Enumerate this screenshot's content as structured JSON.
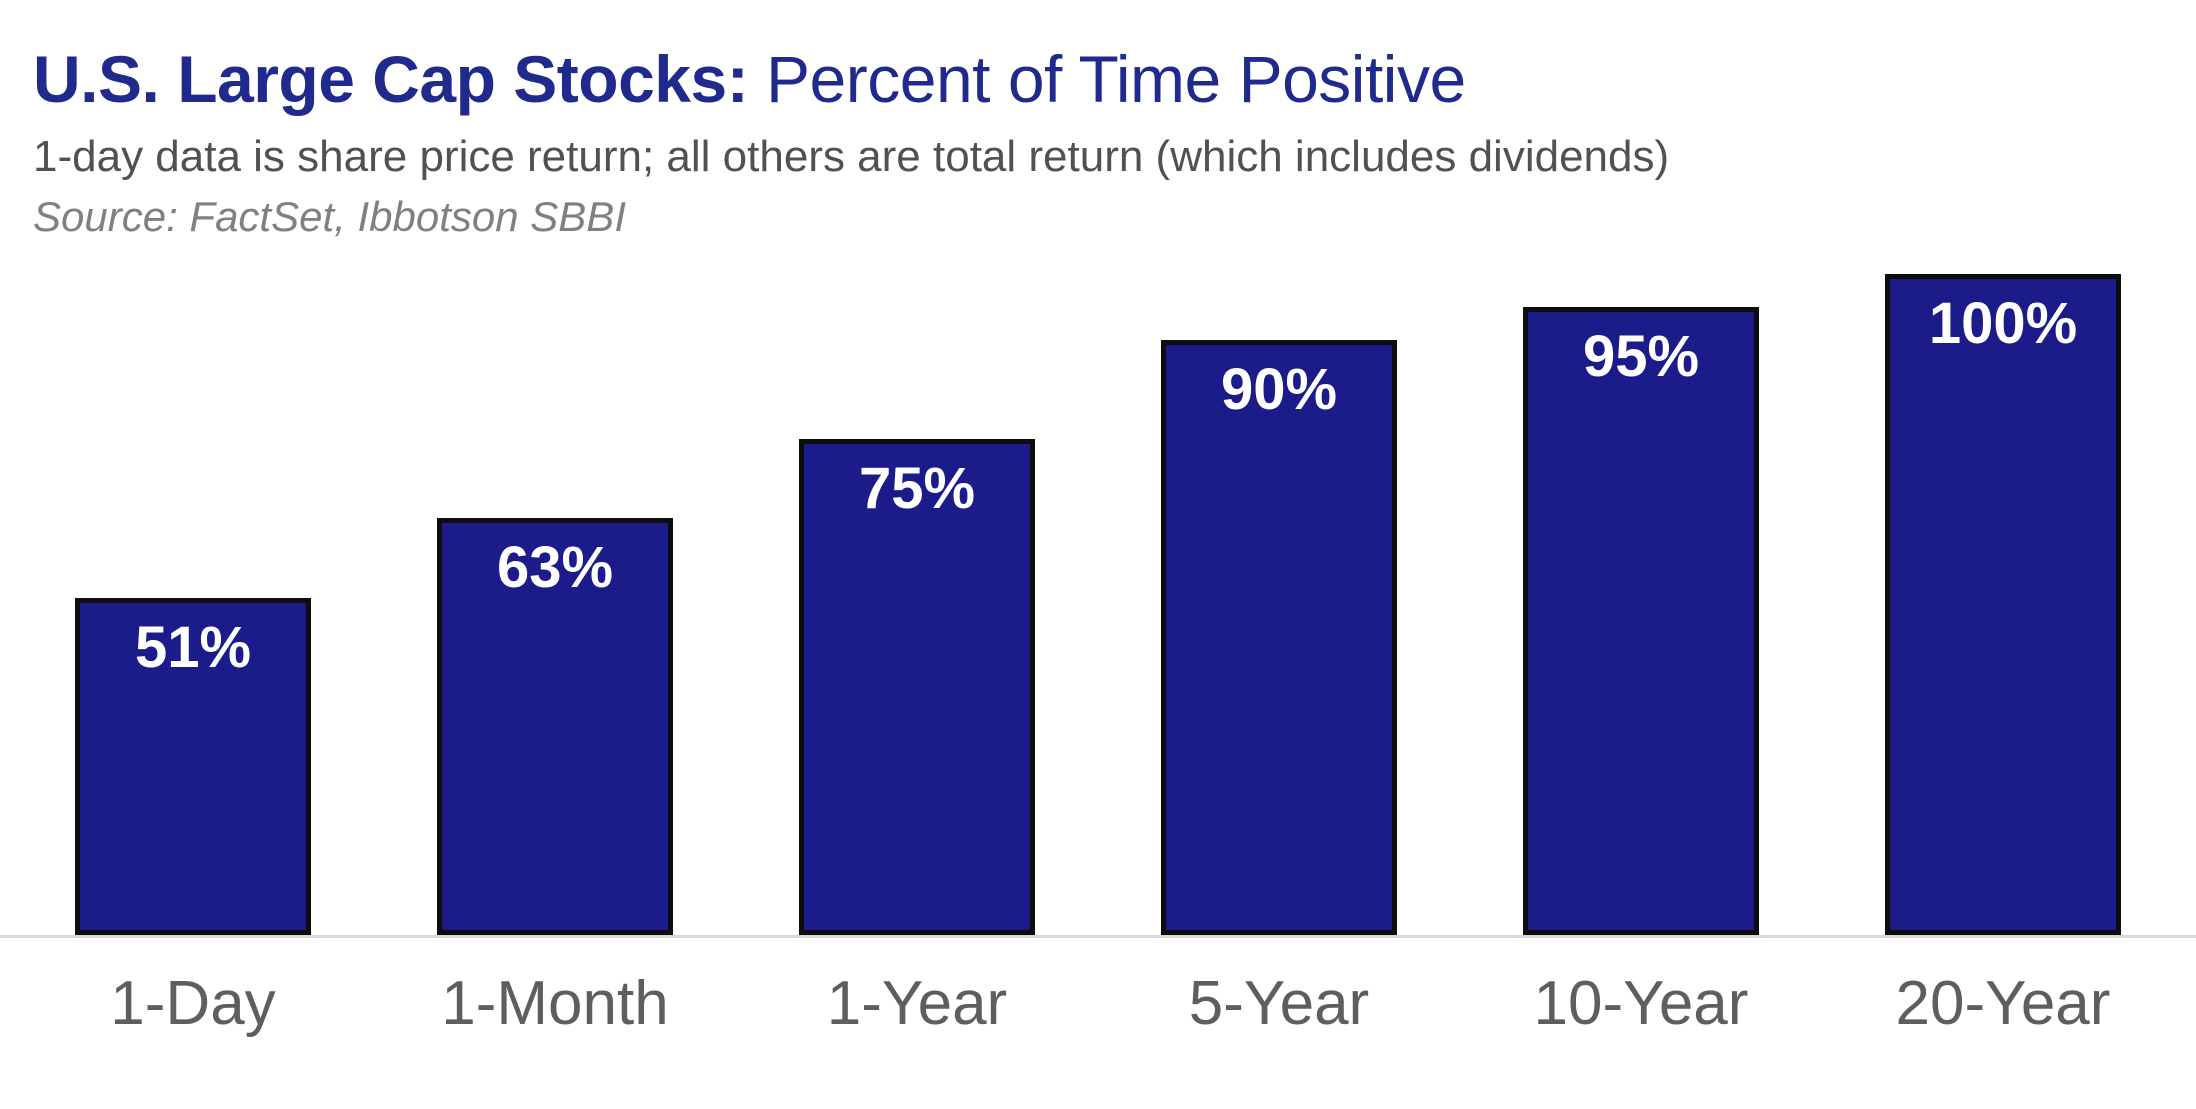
{
  "header": {
    "title_bold": "U.S. Large Cap Stocks:",
    "title_regular": " Percent of Time Positive",
    "subtitle": "1-day data is share price return; all others are total return (which includes dividends)",
    "source": "Source: FactSet, Ibbotson SBBI"
  },
  "chart_data": {
    "type": "bar",
    "title": "U.S. Large Cap Stocks: Percent of Time Positive",
    "subtitle": "1-day data is share price return; all others are total return (which includes dividends)",
    "source": "Source: FactSet, Ibbotson SBBI",
    "categories": [
      "1-Day",
      "1-Month",
      "1-Year",
      "5-Year",
      "10-Year",
      "20-Year"
    ],
    "values": [
      51,
      63,
      75,
      90,
      95,
      100
    ],
    "bar_labels": [
      "51%",
      "63%",
      "75%",
      "90%",
      "95%",
      "100%"
    ],
    "xlabel": "",
    "ylabel": "",
    "ylim": [
      0,
      100
    ],
    "grid": false,
    "legend": "none",
    "value_label_position": "inside-top",
    "colors": {
      "bar_fill": "#1B1B8A",
      "bar_border": "#0D0D0D",
      "value_label": "#FFFFFF",
      "title": "#1F2A8C",
      "subtitle": "#515151",
      "source": "#808080",
      "x_label": "#5E5E5E",
      "axis_line": "#D9D9D9",
      "background": "#FFFFFF"
    }
  }
}
